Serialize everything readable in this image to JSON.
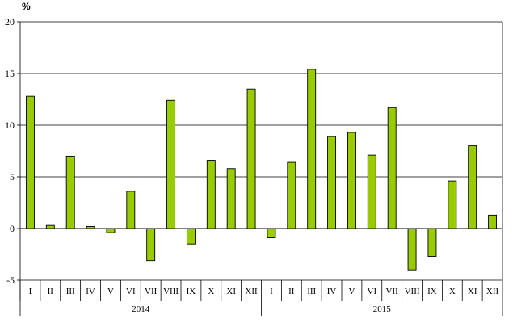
{
  "chart_data": {
    "type": "bar",
    "title": "",
    "xlabel": "",
    "ylabel": "%",
    "ylim": [
      -5,
      20
    ],
    "yticks": [
      20,
      15,
      10,
      5,
      0,
      -5
    ],
    "grid": true,
    "legend": "none",
    "bar_color": "#99cc00",
    "bar_edge_color": "#000000",
    "groups": [
      {
        "label": "2014",
        "start": 0,
        "count": 12
      },
      {
        "label": "2015",
        "start": 12,
        "count": 12
      }
    ],
    "categories": [
      "I",
      "II",
      "III",
      "IV",
      "V",
      "VI",
      "VII",
      "VIII",
      "IX",
      "X",
      "XI",
      "XII",
      "I",
      "II",
      "III",
      "IV",
      "V",
      "VI",
      "VII",
      "VIII",
      "IX",
      "X",
      "XI",
      "XII"
    ],
    "values": [
      12.8,
      0.3,
      7.0,
      0.2,
      -0.4,
      3.6,
      -3.1,
      12.4,
      -1.5,
      6.6,
      5.8,
      13.5,
      -0.9,
      6.4,
      15.4,
      8.9,
      9.3,
      7.1,
      11.7,
      -4.0,
      -2.7,
      4.6,
      8.0,
      1.3
    ]
  }
}
